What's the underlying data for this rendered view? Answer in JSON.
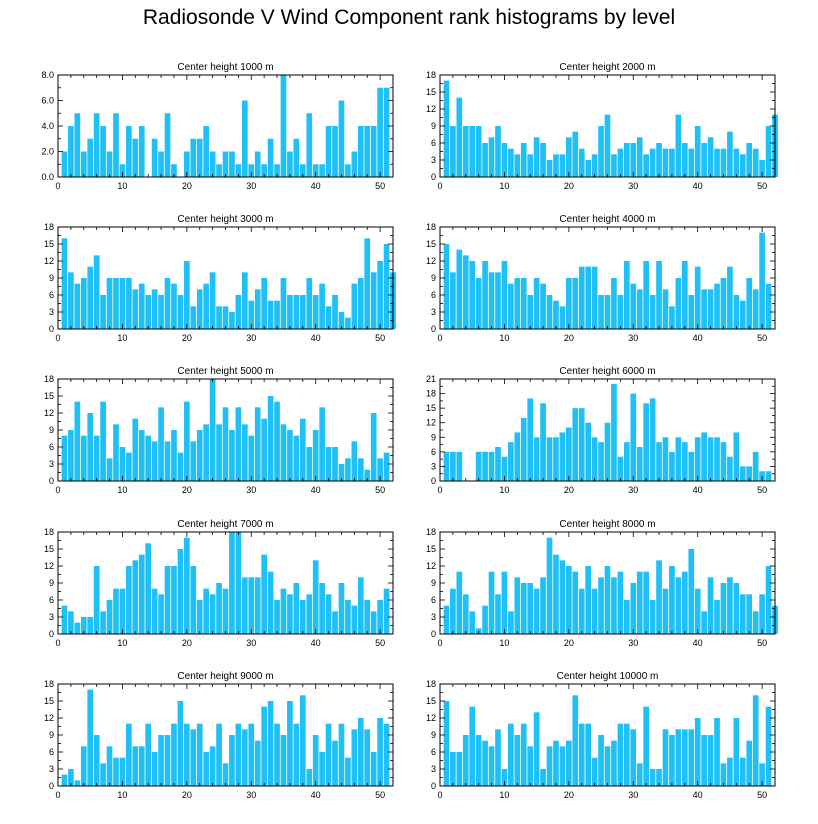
{
  "title": "Radiosonde V Wind Component rank histograms by level",
  "bar_color": "#1ec0f5",
  "chart_data": [
    {
      "type": "bar",
      "title": "Center height 1000 m",
      "x_start": 1,
      "xlim": [
        0,
        52
      ],
      "xticks": [
        0,
        10,
        20,
        30,
        40,
        50
      ],
      "ylim": [
        0,
        8
      ],
      "yticks": [
        "0.0",
        "2.0",
        "4.0",
        "6.0",
        "8.0"
      ],
      "values": [
        2,
        4,
        5,
        2,
        3,
        5,
        4,
        2,
        5,
        1,
        4,
        3,
        4,
        0,
        3,
        2,
        5,
        1,
        0,
        2,
        3,
        3,
        4,
        2,
        1,
        2,
        2,
        1,
        6,
        1,
        2,
        1,
        3,
        1,
        8,
        2,
        3,
        1,
        5,
        1,
        1,
        4,
        4,
        6,
        1,
        2,
        4,
        4,
        4,
        7,
        7
      ]
    },
    {
      "type": "bar",
      "title": "Center height 2000 m",
      "x_start": 1,
      "xlim": [
        0,
        52
      ],
      "xticks": [
        0,
        10,
        20,
        30,
        40,
        50
      ],
      "ylim": [
        0,
        18
      ],
      "yticks": [
        "0",
        "3",
        "6",
        "9",
        "12",
        "15",
        "18"
      ],
      "values": [
        17,
        9,
        14,
        9,
        9,
        9,
        6,
        7,
        9,
        6,
        5,
        4,
        6,
        4,
        7,
        6,
        3,
        4,
        4,
        7,
        8,
        5,
        3,
        4,
        9,
        11,
        4,
        5,
        6,
        6,
        7,
        4,
        5,
        6,
        5,
        5,
        11,
        6,
        5,
        9,
        6,
        7,
        5,
        5,
        8,
        5,
        4,
        6,
        5,
        3,
        9,
        11
      ]
    },
    {
      "type": "bar",
      "title": "Center height 3000 m",
      "x_start": 1,
      "xlim": [
        0,
        52
      ],
      "xticks": [
        0,
        10,
        20,
        30,
        40,
        50
      ],
      "ylim": [
        0,
        18
      ],
      "yticks": [
        "0",
        "3",
        "6",
        "9",
        "12",
        "15",
        "18"
      ],
      "values": [
        16,
        10,
        8,
        9,
        11,
        13,
        6,
        9,
        9,
        9,
        9,
        7,
        8,
        6,
        7,
        6,
        9,
        8,
        6,
        12,
        4,
        7,
        8,
        10,
        4,
        4,
        3,
        6,
        10,
        5,
        7,
        9,
        5,
        5,
        9,
        6,
        6,
        6,
        9,
        6,
        8,
        4,
        6,
        3,
        2,
        8,
        9,
        16,
        10,
        12,
        15,
        10
      ]
    },
    {
      "type": "bar",
      "title": "Center height 4000 m",
      "x_start": 1,
      "xlim": [
        0,
        52
      ],
      "xticks": [
        0,
        10,
        20,
        30,
        40,
        50
      ],
      "ylim": [
        0,
        18
      ],
      "yticks": [
        "0",
        "3",
        "6",
        "9",
        "12",
        "15",
        "18"
      ],
      "values": [
        15,
        10,
        14,
        13,
        12,
        9,
        12,
        10,
        10,
        12,
        8,
        9,
        9,
        6,
        9,
        8,
        6,
        5,
        4,
        9,
        9,
        11,
        11,
        11,
        6,
        6,
        9,
        6,
        12,
        8,
        7,
        12,
        6,
        12,
        7,
        4,
        9,
        12,
        6,
        11,
        7,
        7,
        8,
        9,
        11,
        6,
        5,
        9,
        7,
        17,
        8
      ]
    },
    {
      "type": "bar",
      "title": "Center height 5000 m",
      "x_start": 1,
      "xlim": [
        0,
        52
      ],
      "xticks": [
        0,
        10,
        20,
        30,
        40,
        50
      ],
      "ylim": [
        0,
        18
      ],
      "yticks": [
        "0",
        "3",
        "6",
        "9",
        "12",
        "15",
        "18"
      ],
      "values": [
        8,
        9,
        14,
        8,
        12,
        8,
        14,
        4,
        10,
        6,
        5,
        11,
        9,
        8,
        7,
        13,
        7,
        9,
        5,
        14,
        7,
        9,
        10,
        18,
        10,
        13,
        9,
        13,
        10,
        8,
        13,
        11,
        15,
        14,
        10,
        9,
        8,
        11,
        6,
        9,
        13,
        6,
        6,
        3,
        4,
        7,
        4,
        2,
        12,
        4,
        5
      ]
    },
    {
      "type": "bar",
      "title": "Center height 6000 m",
      "x_start": 1,
      "xlim": [
        0,
        52
      ],
      "xticks": [
        0,
        10,
        20,
        30,
        40,
        50
      ],
      "ylim": [
        0,
        21
      ],
      "yticks": [
        "0",
        "3",
        "6",
        "9",
        "12",
        "15",
        "18",
        "21"
      ],
      "values": [
        6,
        6,
        6,
        0,
        0,
        6,
        6,
        6,
        7,
        5,
        8,
        10,
        13,
        17,
        9,
        16,
        9,
        9,
        10,
        11,
        15,
        15,
        12,
        9,
        8,
        12,
        20,
        5,
        8,
        18,
        7,
        16,
        17,
        8,
        9,
        6,
        9,
        8,
        6,
        9,
        10,
        9,
        9,
        8,
        5,
        10,
        3,
        3,
        6,
        2,
        2
      ]
    },
    {
      "type": "bar",
      "title": "Center height 7000 m",
      "x_start": 1,
      "xlim": [
        0,
        52
      ],
      "xticks": [
        0,
        10,
        20,
        30,
        40,
        50
      ],
      "ylim": [
        0,
        18
      ],
      "yticks": [
        "0",
        "3",
        "6",
        "9",
        "12",
        "15",
        "18"
      ],
      "values": [
        5,
        4,
        2,
        3,
        3,
        12,
        4,
        6,
        8,
        8,
        12,
        13,
        14,
        16,
        8,
        7,
        12,
        12,
        15,
        17,
        12,
        6,
        8,
        7,
        9,
        8,
        18,
        18,
        10,
        10,
        10,
        14,
        11,
        6,
        8,
        7,
        9,
        6,
        7,
        13,
        9,
        7,
        4,
        9,
        6,
        5,
        10,
        6,
        4,
        6,
        8
      ]
    },
    {
      "type": "bar",
      "title": "Center height 8000 m",
      "x_start": 1,
      "xlim": [
        0,
        52
      ],
      "xticks": [
        0,
        10,
        20,
        30,
        40,
        50
      ],
      "ylim": [
        0,
        18
      ],
      "yticks": [
        "0",
        "3",
        "6",
        "9",
        "12",
        "15",
        "18"
      ],
      "values": [
        5,
        8,
        11,
        7,
        4,
        1,
        5,
        11,
        7,
        11,
        4,
        10,
        9,
        9,
        8,
        10,
        17,
        14,
        13,
        12,
        11,
        8,
        12,
        8,
        10,
        12,
        10,
        11,
        6,
        9,
        11,
        11,
        6,
        13,
        8,
        12,
        10,
        11,
        15,
        8,
        4,
        10,
        6,
        9,
        10,
        9,
        7,
        7,
        4,
        7,
        12,
        5
      ]
    },
    {
      "type": "bar",
      "title": "Center height 9000 m",
      "x_start": 1,
      "xlim": [
        0,
        52
      ],
      "xticks": [
        0,
        10,
        20,
        30,
        40,
        50
      ],
      "ylim": [
        0,
        18
      ],
      "yticks": [
        "0",
        "3",
        "6",
        "9",
        "12",
        "15",
        "18"
      ],
      "values": [
        2,
        3,
        1,
        7,
        17,
        9,
        4,
        7,
        5,
        5,
        11,
        7,
        7,
        11,
        6,
        9,
        9,
        11,
        15,
        11,
        10,
        11,
        6,
        7,
        11,
        4,
        9,
        11,
        10,
        11,
        8,
        14,
        15,
        11,
        9,
        15,
        11,
        16,
        3,
        9,
        6,
        11,
        8,
        11,
        5,
        10,
        12,
        10,
        6,
        12,
        11
      ]
    },
    {
      "type": "bar",
      "title": "Center height 10000 m",
      "x_start": 1,
      "xlim": [
        0,
        52
      ],
      "xticks": [
        0,
        10,
        20,
        30,
        40,
        50
      ],
      "ylim": [
        0,
        18
      ],
      "yticks": [
        "0",
        "3",
        "6",
        "9",
        "12",
        "15",
        "18"
      ],
      "values": [
        15,
        6,
        6,
        9,
        14,
        9,
        8,
        7,
        10,
        3,
        11,
        9,
        11,
        7,
        13,
        3,
        7,
        8,
        7,
        8,
        16,
        11,
        11,
        5,
        9,
        7,
        8,
        11,
        11,
        10,
        4,
        14,
        3,
        3,
        10,
        9,
        10,
        10,
        10,
        12,
        9,
        9,
        12,
        4,
        5,
        12,
        5,
        8,
        16,
        4,
        14
      ]
    }
  ]
}
